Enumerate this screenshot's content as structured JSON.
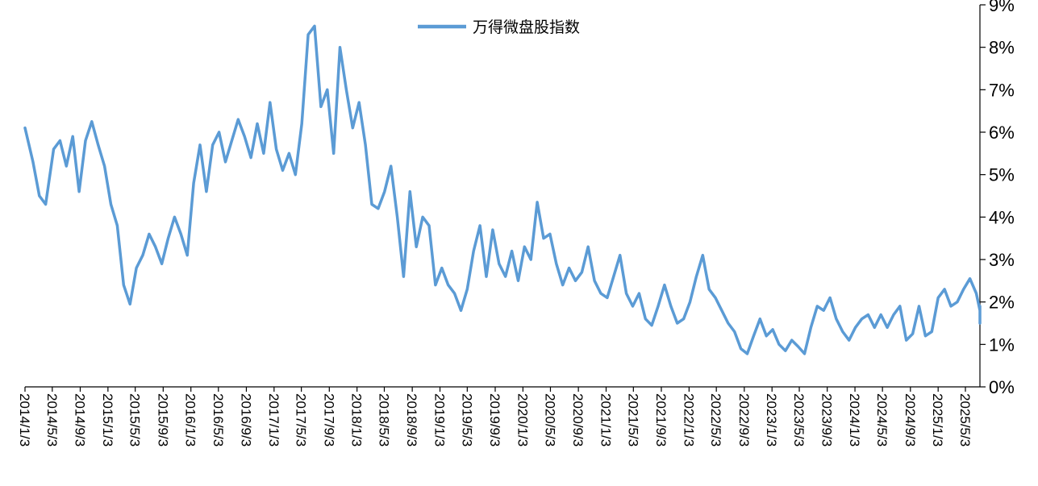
{
  "chart_data": {
    "type": "line",
    "series": [
      {
        "name": "万得微盘股指数",
        "color": "#5b9bd5",
        "points": [
          [
            "2014-01-03",
            6.1
          ],
          [
            "2014-02-07",
            5.3
          ],
          [
            "2014-03-07",
            4.5
          ],
          [
            "2014-04-04",
            4.3
          ],
          [
            "2014-05-09",
            5.6
          ],
          [
            "2014-06-06",
            5.8
          ],
          [
            "2014-07-04",
            5.2
          ],
          [
            "2014-08-01",
            5.9
          ],
          [
            "2014-08-29",
            4.6
          ],
          [
            "2014-09-26",
            5.8
          ],
          [
            "2014-10-24",
            6.25
          ],
          [
            "2014-11-21",
            5.7
          ],
          [
            "2014-12-19",
            5.2
          ],
          [
            "2015-01-16",
            4.3
          ],
          [
            "2015-02-13",
            3.8
          ],
          [
            "2015-03-13",
            2.4
          ],
          [
            "2015-04-10",
            1.95
          ],
          [
            "2015-05-08",
            2.8
          ],
          [
            "2015-06-05",
            3.1
          ],
          [
            "2015-07-03",
            3.6
          ],
          [
            "2015-07-31",
            3.3
          ],
          [
            "2015-08-28",
            2.9
          ],
          [
            "2015-09-25",
            3.5
          ],
          [
            "2015-10-23",
            4.0
          ],
          [
            "2015-11-20",
            3.6
          ],
          [
            "2015-12-18",
            3.1
          ],
          [
            "2016-01-15",
            4.8
          ],
          [
            "2016-02-12",
            5.7
          ],
          [
            "2016-03-11",
            4.6
          ],
          [
            "2016-04-08",
            5.7
          ],
          [
            "2016-05-06",
            6.0
          ],
          [
            "2016-06-03",
            5.3
          ],
          [
            "2016-07-01",
            5.8
          ],
          [
            "2016-07-29",
            6.3
          ],
          [
            "2016-08-26",
            5.9
          ],
          [
            "2016-09-23",
            5.4
          ],
          [
            "2016-10-21",
            6.2
          ],
          [
            "2016-11-18",
            5.5
          ],
          [
            "2016-12-16",
            6.7
          ],
          [
            "2017-01-13",
            5.6
          ],
          [
            "2017-02-10",
            5.1
          ],
          [
            "2017-03-10",
            5.5
          ],
          [
            "2017-04-07",
            5.0
          ],
          [
            "2017-05-05",
            6.2
          ],
          [
            "2017-06-02",
            8.3
          ],
          [
            "2017-06-30",
            8.5
          ],
          [
            "2017-07-28",
            6.6
          ],
          [
            "2017-08-25",
            7.0
          ],
          [
            "2017-09-22",
            5.5
          ],
          [
            "2017-10-20",
            8.0
          ],
          [
            "2017-11-17",
            7.0
          ],
          [
            "2017-12-15",
            6.1
          ],
          [
            "2018-01-12",
            6.7
          ],
          [
            "2018-02-09",
            5.7
          ],
          [
            "2018-03-09",
            4.3
          ],
          [
            "2018-04-06",
            4.2
          ],
          [
            "2018-05-04",
            4.6
          ],
          [
            "2018-06-01",
            5.2
          ],
          [
            "2018-06-29",
            4.0
          ],
          [
            "2018-07-27",
            2.6
          ],
          [
            "2018-08-24",
            4.6
          ],
          [
            "2018-09-21",
            3.3
          ],
          [
            "2018-10-19",
            4.0
          ],
          [
            "2018-11-16",
            3.8
          ],
          [
            "2018-12-14",
            2.4
          ],
          [
            "2019-01-11",
            2.8
          ],
          [
            "2019-02-08",
            2.4
          ],
          [
            "2019-03-08",
            2.2
          ],
          [
            "2019-04-05",
            1.8
          ],
          [
            "2019-05-03",
            2.3
          ],
          [
            "2019-05-31",
            3.2
          ],
          [
            "2019-06-28",
            3.8
          ],
          [
            "2019-07-26",
            2.6
          ],
          [
            "2019-08-23",
            3.7
          ],
          [
            "2019-09-20",
            2.9
          ],
          [
            "2019-10-18",
            2.6
          ],
          [
            "2019-11-15",
            3.2
          ],
          [
            "2019-12-13",
            2.5
          ],
          [
            "2020-01-10",
            3.3
          ],
          [
            "2020-02-07",
            3.0
          ],
          [
            "2020-03-06",
            4.35
          ],
          [
            "2020-04-03",
            3.5
          ],
          [
            "2020-05-01",
            3.6
          ],
          [
            "2020-05-29",
            2.9
          ],
          [
            "2020-06-26",
            2.4
          ],
          [
            "2020-07-24",
            2.8
          ],
          [
            "2020-08-21",
            2.5
          ],
          [
            "2020-09-18",
            2.7
          ],
          [
            "2020-10-16",
            3.3
          ],
          [
            "2020-11-13",
            2.5
          ],
          [
            "2020-12-11",
            2.2
          ],
          [
            "2021-01-08",
            2.1
          ],
          [
            "2021-02-05",
            2.6
          ],
          [
            "2021-03-05",
            3.1
          ],
          [
            "2021-04-02",
            2.2
          ],
          [
            "2021-04-30",
            1.9
          ],
          [
            "2021-05-28",
            2.2
          ],
          [
            "2021-06-25",
            1.6
          ],
          [
            "2021-07-23",
            1.45
          ],
          [
            "2021-08-20",
            1.9
          ],
          [
            "2021-09-17",
            2.4
          ],
          [
            "2021-10-15",
            1.9
          ],
          [
            "2021-11-12",
            1.5
          ],
          [
            "2021-12-10",
            1.6
          ],
          [
            "2022-01-07",
            2.0
          ],
          [
            "2022-02-04",
            2.6
          ],
          [
            "2022-03-04",
            3.1
          ],
          [
            "2022-04-01",
            2.3
          ],
          [
            "2022-04-29",
            2.1
          ],
          [
            "2022-05-27",
            1.8
          ],
          [
            "2022-06-24",
            1.5
          ],
          [
            "2022-07-22",
            1.3
          ],
          [
            "2022-08-19",
            0.9
          ],
          [
            "2022-09-16",
            0.78
          ],
          [
            "2022-10-14",
            1.2
          ],
          [
            "2022-11-11",
            1.6
          ],
          [
            "2022-12-09",
            1.2
          ],
          [
            "2023-01-06",
            1.35
          ],
          [
            "2023-02-03",
            1.0
          ],
          [
            "2023-03-03",
            0.85
          ],
          [
            "2023-03-31",
            1.1
          ],
          [
            "2023-04-28",
            0.95
          ],
          [
            "2023-05-26",
            0.78
          ],
          [
            "2023-06-23",
            1.4
          ],
          [
            "2023-07-21",
            1.9
          ],
          [
            "2023-08-18",
            1.8
          ],
          [
            "2023-09-15",
            2.1
          ],
          [
            "2023-10-13",
            1.6
          ],
          [
            "2023-11-10",
            1.3
          ],
          [
            "2023-12-08",
            1.1
          ],
          [
            "2024-01-05",
            1.4
          ],
          [
            "2024-02-02",
            1.6
          ],
          [
            "2024-03-01",
            1.7
          ],
          [
            "2024-03-29",
            1.4
          ],
          [
            "2024-04-26",
            1.7
          ],
          [
            "2024-05-24",
            1.4
          ],
          [
            "2024-06-21",
            1.7
          ],
          [
            "2024-07-19",
            1.9
          ],
          [
            "2024-08-16",
            1.1
          ],
          [
            "2024-09-13",
            1.25
          ],
          [
            "2024-10-11",
            1.9
          ],
          [
            "2024-11-08",
            1.2
          ],
          [
            "2024-12-06",
            1.3
          ],
          [
            "2025-01-03",
            2.1
          ],
          [
            "2025-01-31",
            2.3
          ],
          [
            "2025-02-28",
            1.9
          ],
          [
            "2025-03-28",
            2.0
          ],
          [
            "2025-04-25",
            2.3
          ],
          [
            "2025-05-23",
            2.55
          ],
          [
            "2025-06-20",
            2.2
          ],
          [
            "2025-07-18",
            1.8
          ],
          [
            "2025-08-15",
            1.7
          ],
          [
            "2025-09-12",
            1.9
          ],
          [
            "2025-10-10",
            1.6
          ],
          [
            "2025-11-07",
            1.5
          ]
        ]
      }
    ],
    "x_tick_labels": [
      "2014/1/3",
      "2014/5/3",
      "2014/9/3",
      "2015/1/3",
      "2015/5/3",
      "2015/9/3",
      "2016/1/3",
      "2016/5/3",
      "2016/9/3",
      "2017/1/3",
      "2017/5/3",
      "2017/9/3",
      "2018/1/3",
      "2018/5/3",
      "2018/9/3",
      "2019/1/3",
      "2019/5/3",
      "2019/9/3",
      "2020/1/3",
      "2020/5/3",
      "2020/9/3",
      "2021/1/3",
      "2021/5/3",
      "2021/9/3",
      "2022/1/3",
      "2022/5/3",
      "2022/9/3",
      "2023/1/3",
      "2023/5/3",
      "2023/9/3",
      "2024/1/3",
      "2024/5/3",
      "2024/9/3",
      "2025/1/3",
      "2025/5/3"
    ],
    "y_tick_labels": [
      "0%",
      "1%",
      "2%",
      "3%",
      "4%",
      "5%",
      "6%",
      "7%",
      "8%",
      "9%"
    ],
    "ylim": [
      0,
      9
    ],
    "y_axis_side": "right",
    "legend_position": "top-center",
    "grid": false
  }
}
